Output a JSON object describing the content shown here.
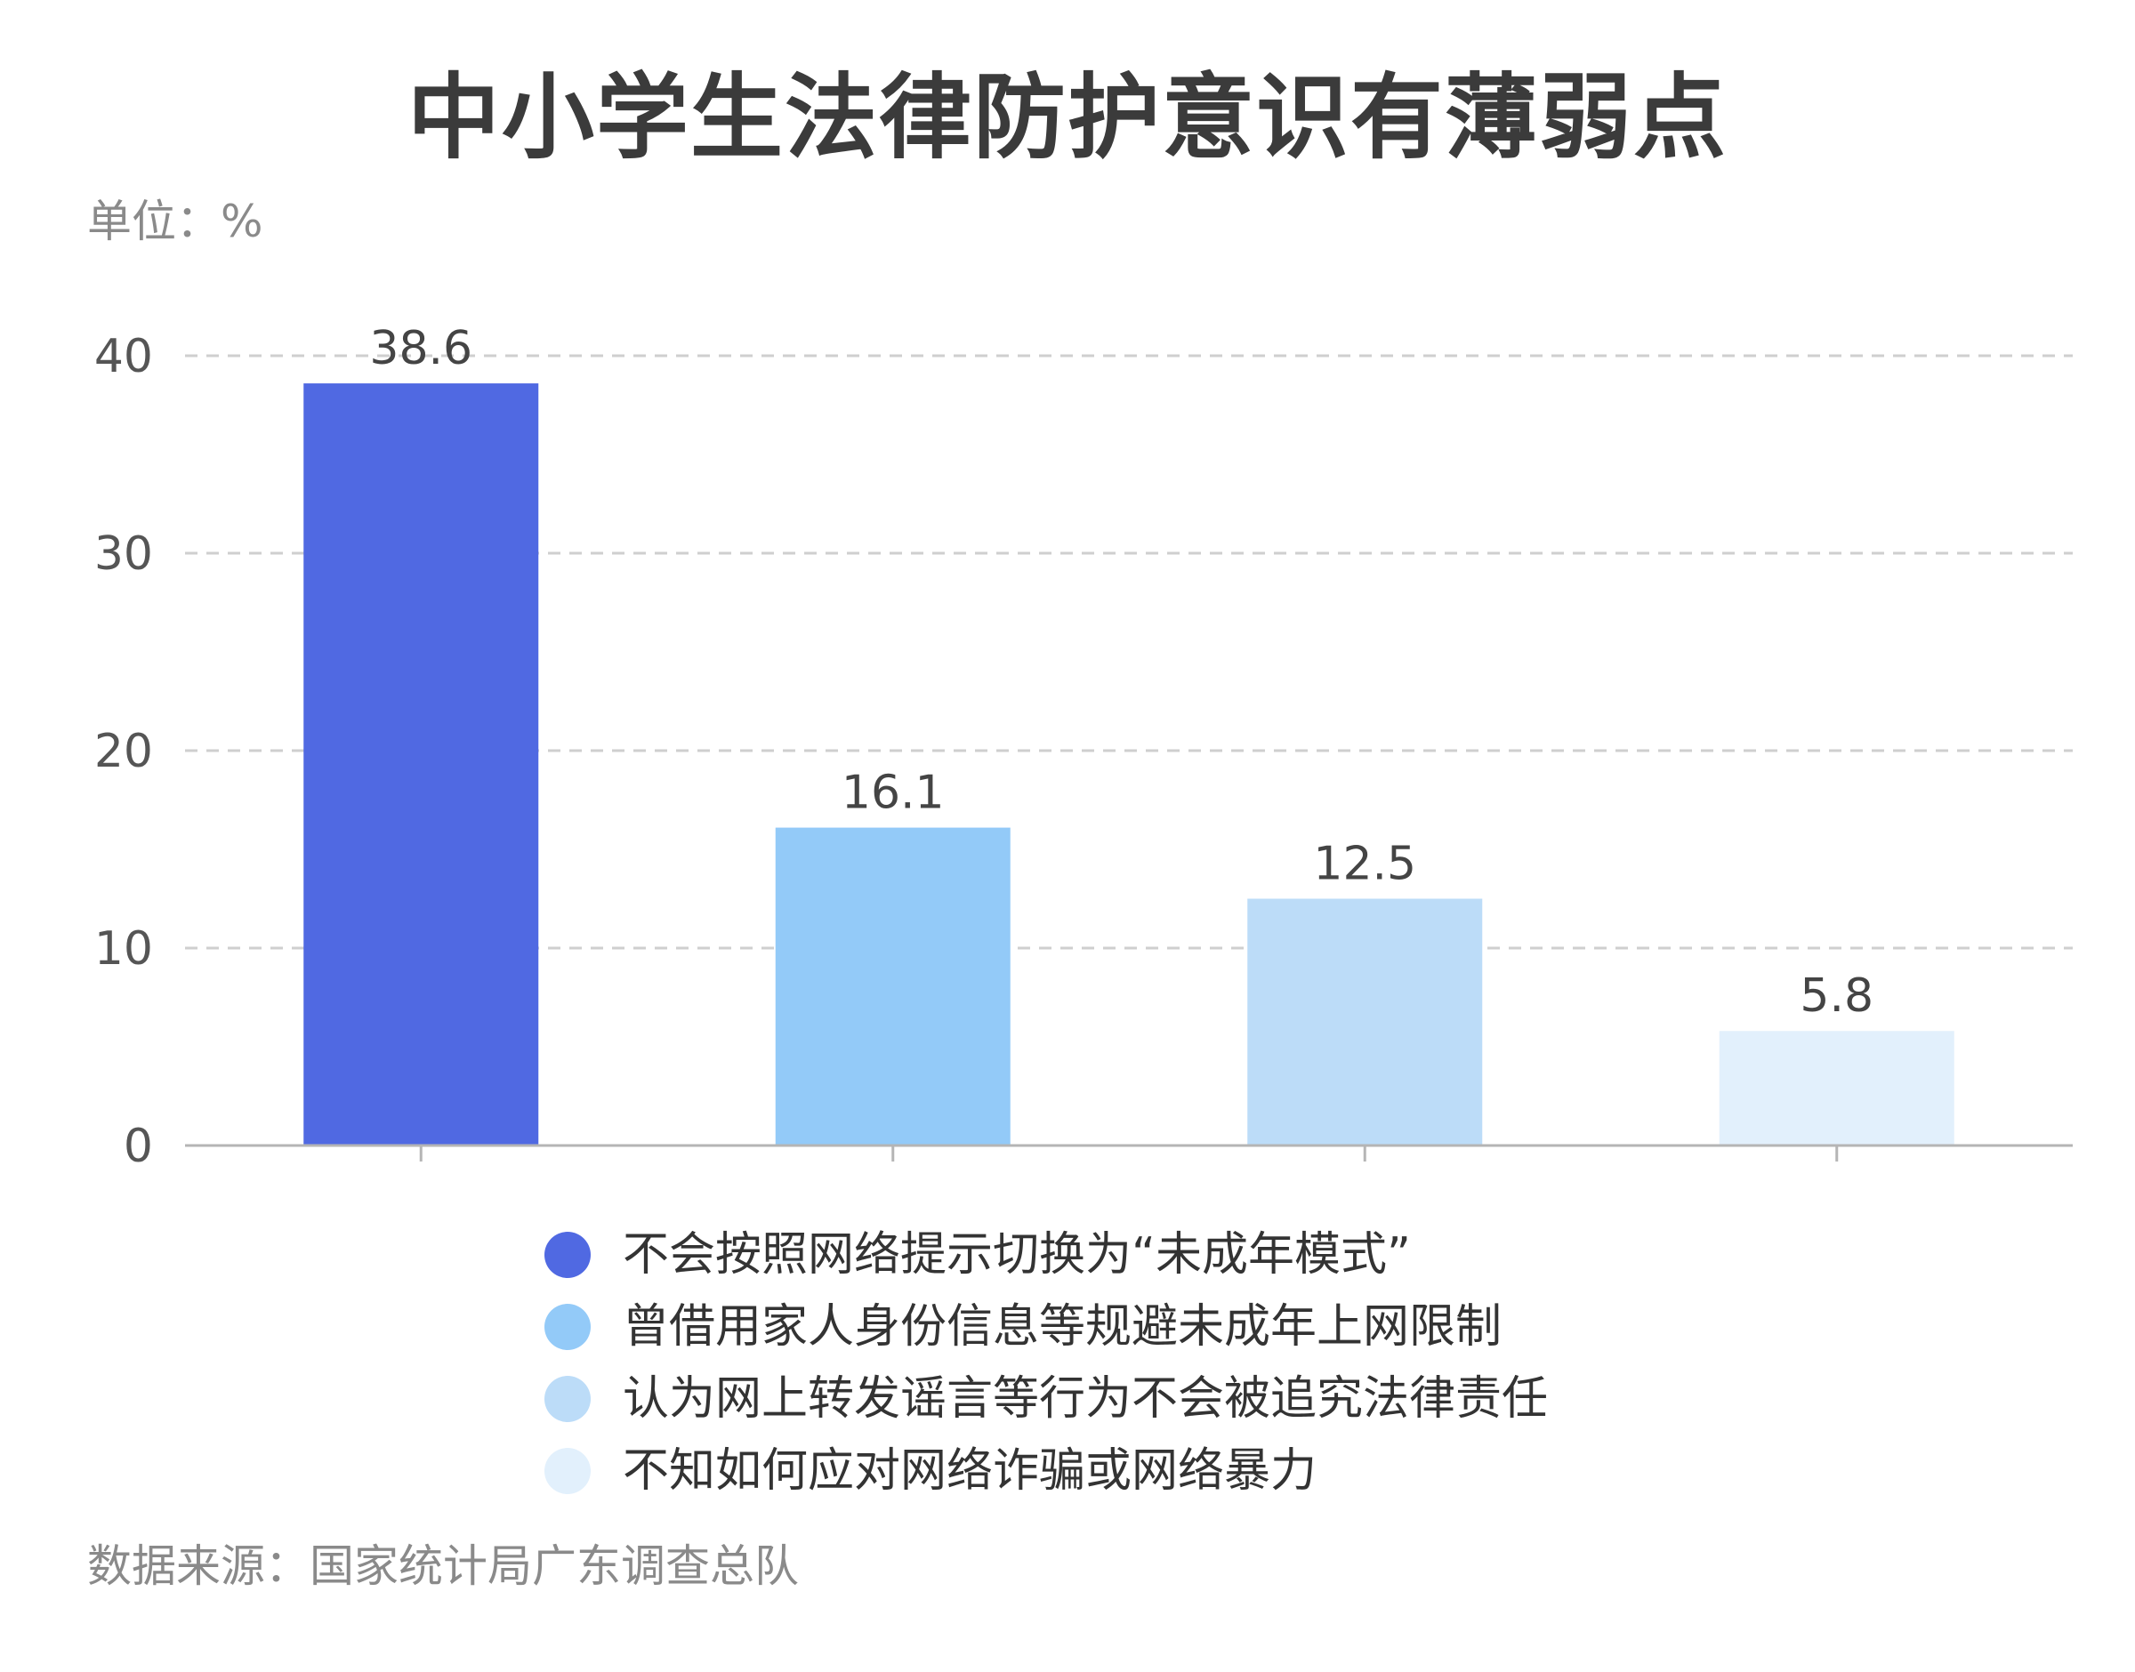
{
  "chart_data": {
    "type": "bar",
    "title": "中小学生法律防护意识有薄弱点",
    "unit_label": "单位：%",
    "ylim": [
      0,
      40
    ],
    "yticks": [
      0,
      10,
      20,
      30,
      40
    ],
    "grid": "dashed horizontal",
    "legend_position": "bottom",
    "categories": [
      "不会按照网络提示切换为“未成年模式”",
      "曾借用家人身份信息等规避未成年上网限制",
      "认为网上转发谣言等行为不会被追究法律责任",
      "不知如何应对网络诈骗或网络暴力"
    ],
    "values": [
      38.6,
      16.1,
      12.5,
      5.8
    ],
    "value_labels": [
      "38.6",
      "16.1",
      "12.5",
      "5.8"
    ],
    "colors": [
      "#5069e2",
      "#93caf8",
      "#bcdcf8",
      "#e2f0fc"
    ],
    "source": "数据来源：国家统计局广东调查总队"
  }
}
